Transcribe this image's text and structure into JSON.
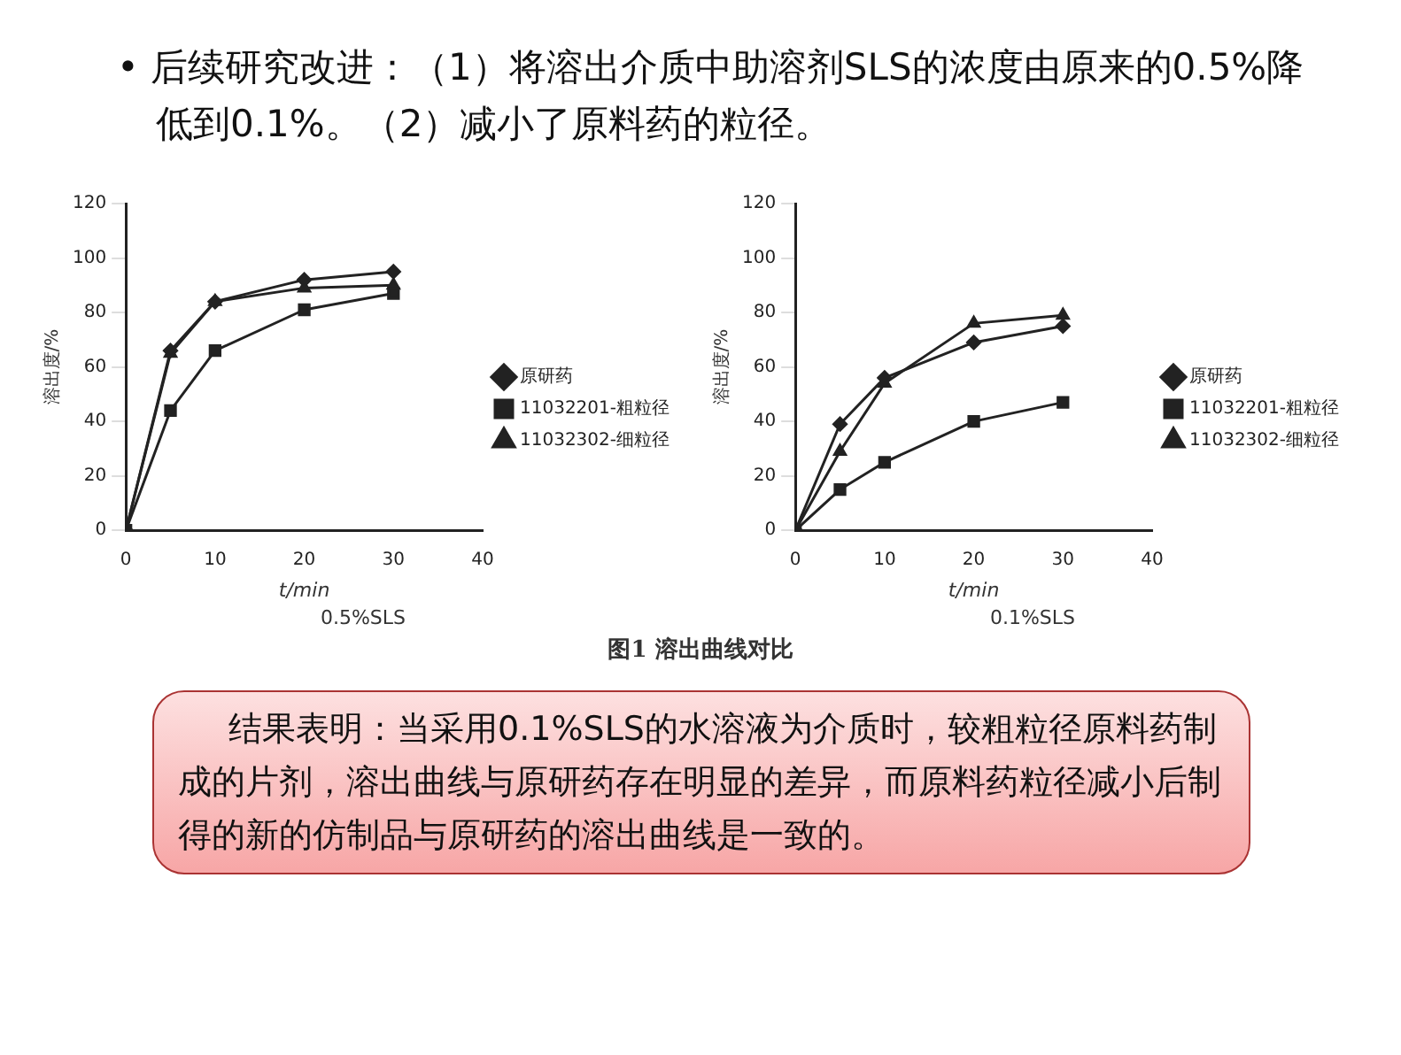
{
  "chart_data": [
    {
      "type": "other",
      "title": "• 后续研究改进：（1）将溶出介质中助溶剂SLS的浓度由原来的0.5%降低到0.1%。（2）减小了原料药的粒径。"
    },
    {
      "type": "line",
      "subtitle": "0.5%SLS",
      "xlabel": "t/min",
      "ylabel": "溶出度/%",
      "x": [
        0,
        5,
        10,
        20,
        30
      ],
      "xlim": [
        0,
        40
      ],
      "xticks": [
        0,
        10,
        20,
        30,
        40
      ],
      "ylim": [
        0,
        120
      ],
      "yticks": [
        0,
        20,
        40,
        60,
        80,
        100,
        120
      ],
      "legend": "right",
      "grid": false,
      "line_style": "solid",
      "series": [
        {
          "name": "原研药",
          "color": "#222222",
          "marker": "diamond",
          "values": [
            0,
            66,
            84,
            92,
            95
          ]
        },
        {
          "name": "11032201-粗粒径",
          "color": "#222222",
          "marker": "square",
          "values": [
            0,
            44,
            66,
            81,
            87
          ]
        },
        {
          "name": "11032302-细粒径",
          "color": "#222222",
          "marker": "triangle",
          "values": [
            0,
            65,
            84,
            89,
            90
          ]
        }
      ]
    },
    {
      "type": "line",
      "subtitle": "0.1%SLS",
      "xlabel": "t/min",
      "ylabel": "溶出度/%",
      "x": [
        0,
        5,
        10,
        20,
        30
      ],
      "xlim": [
        0,
        40
      ],
      "xticks": [
        0,
        10,
        20,
        30,
        40
      ],
      "ylim": [
        0,
        120
      ],
      "yticks": [
        0,
        20,
        40,
        60,
        80,
        100,
        120
      ],
      "legend": "right",
      "grid": false,
      "line_style": "solid",
      "series": [
        {
          "name": "原研药",
          "color": "#222222",
          "marker": "diamond",
          "values": [
            0,
            39,
            56,
            69,
            75
          ]
        },
        {
          "name": "11032201-粗粒径",
          "color": "#222222",
          "marker": "square",
          "values": [
            0,
            15,
            25,
            40,
            47
          ]
        },
        {
          "name": "11032302-细粒径",
          "color": "#222222",
          "marker": "triangle",
          "values": [
            0,
            29,
            54,
            76,
            79
          ]
        }
      ]
    },
    {
      "type": "other",
      "annotations": [
        "图1 溶出曲线对比",
        "结果表明：当采用0.1%SLS的水溶液为介质时，较粗粒径原料药制成的片剂，溶出曲线与原研药存在明显的差异，而原料药粒径减小后制得的新的仿制品与原研药的溶出曲线是一致的。"
      ]
    }
  ]
}
